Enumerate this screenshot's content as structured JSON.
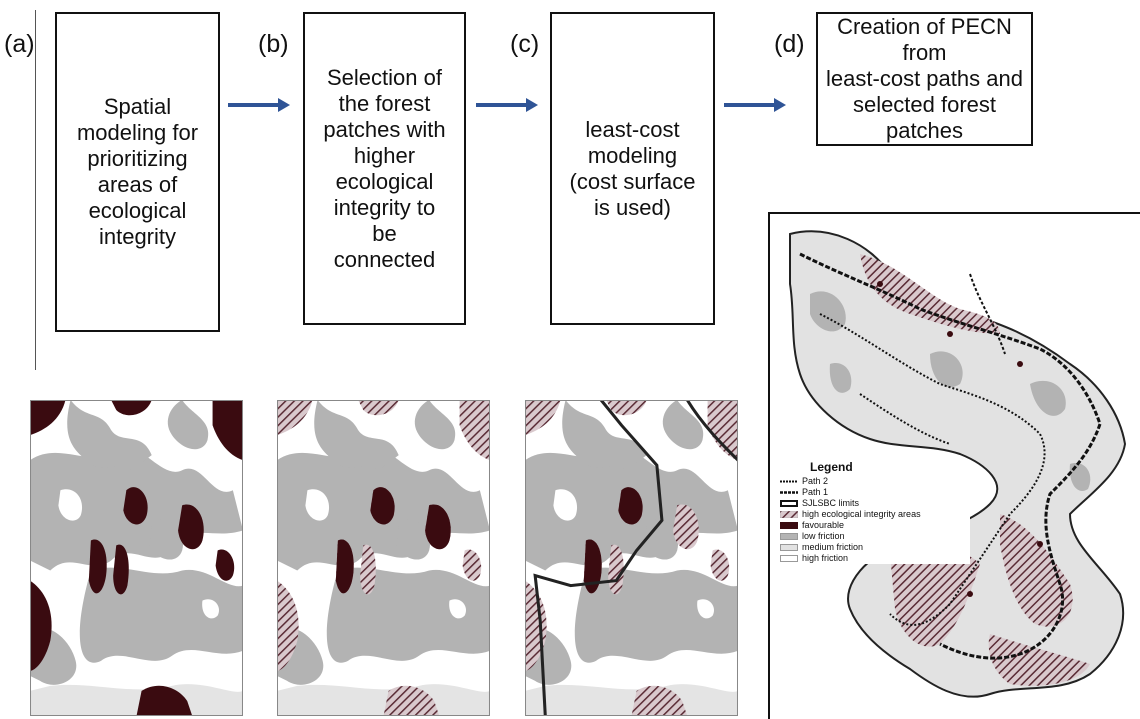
{
  "steps": [
    {
      "label": "(a)",
      "text": "Spatial\nmodeling for\nprioritizing\nareas of\necological\nintegrity"
    },
    {
      "label": "(b)",
      "text": "Selection of\nthe forest\npatches with\nhigher\necological\nintegrity to\nbe\nconnected"
    },
    {
      "label": "(c)",
      "text": "least-cost\nmodeling\n(cost surface\nis used)"
    },
    {
      "label": "(d)",
      "text": "Creation of PECN from\nleast-cost paths and\nselected forest patches"
    }
  ],
  "legend": {
    "title": "Legend",
    "items": [
      {
        "label": "Path 2",
        "type": "dotted-line",
        "color": "#111111"
      },
      {
        "label": "Path 1",
        "type": "dashed-line",
        "color": "#111111"
      },
      {
        "label": "SJLSBC limits",
        "type": "outline",
        "color": "#111111"
      },
      {
        "label": "high ecological integrity areas",
        "type": "hatch",
        "color": "#9a8a8e"
      },
      {
        "label": "favourable",
        "type": "fill",
        "color": "#3a0b10"
      },
      {
        "label": "low friction",
        "type": "fill",
        "color": "#b3b3b3"
      },
      {
        "label": "medium friction",
        "type": "fill",
        "color": "#e2e2e2"
      },
      {
        "label": "high friction",
        "type": "fill",
        "color": "#ffffff"
      }
    ]
  },
  "colors": {
    "arrow": "#2f5496",
    "favourable": "#3a0b10",
    "low_friction": "#b3b3b3",
    "medium_friction": "#e4e4e4",
    "high_friction": "#ffffff"
  }
}
